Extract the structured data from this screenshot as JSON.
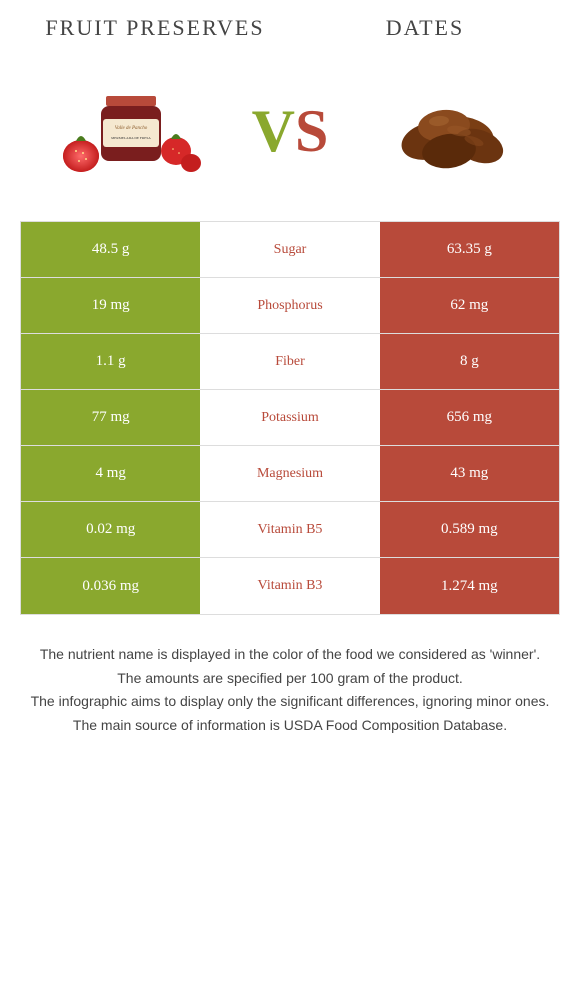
{
  "left_food": {
    "name": "Fruit preserves",
    "color": "#8aa82e"
  },
  "right_food": {
    "name": "Dates",
    "color": "#b84a3a"
  },
  "vs": {
    "v_color": "#8aa82e",
    "s_color": "#b84a3a"
  },
  "nutrients": [
    {
      "label": "Sugar",
      "left": "48.5 g",
      "right": "63.35 g",
      "winner": "right"
    },
    {
      "label": "Phosphorus",
      "left": "19 mg",
      "right": "62 mg",
      "winner": "right"
    },
    {
      "label": "Fiber",
      "left": "1.1 g",
      "right": "8 g",
      "winner": "right"
    },
    {
      "label": "Potassium",
      "left": "77 mg",
      "right": "656 mg",
      "winner": "right"
    },
    {
      "label": "Magnesium",
      "left": "4 mg",
      "right": "43 mg",
      "winner": "right"
    },
    {
      "label": "Vitamin B5",
      "left": "0.02 mg",
      "right": "0.589 mg",
      "winner": "right"
    },
    {
      "label": "Vitamin B3",
      "left": "0.036 mg",
      "right": "1.274 mg",
      "winner": "right"
    }
  ],
  "footer": {
    "line1": "The nutrient name is displayed in the color of the food we considered as 'winner'.",
    "line2": "The amounts are specified per 100 gram of the product.",
    "line3": "The infographic aims to display only the significant differences, ignoring minor ones.",
    "line4": "The main source of information is USDA Food Composition Database."
  }
}
